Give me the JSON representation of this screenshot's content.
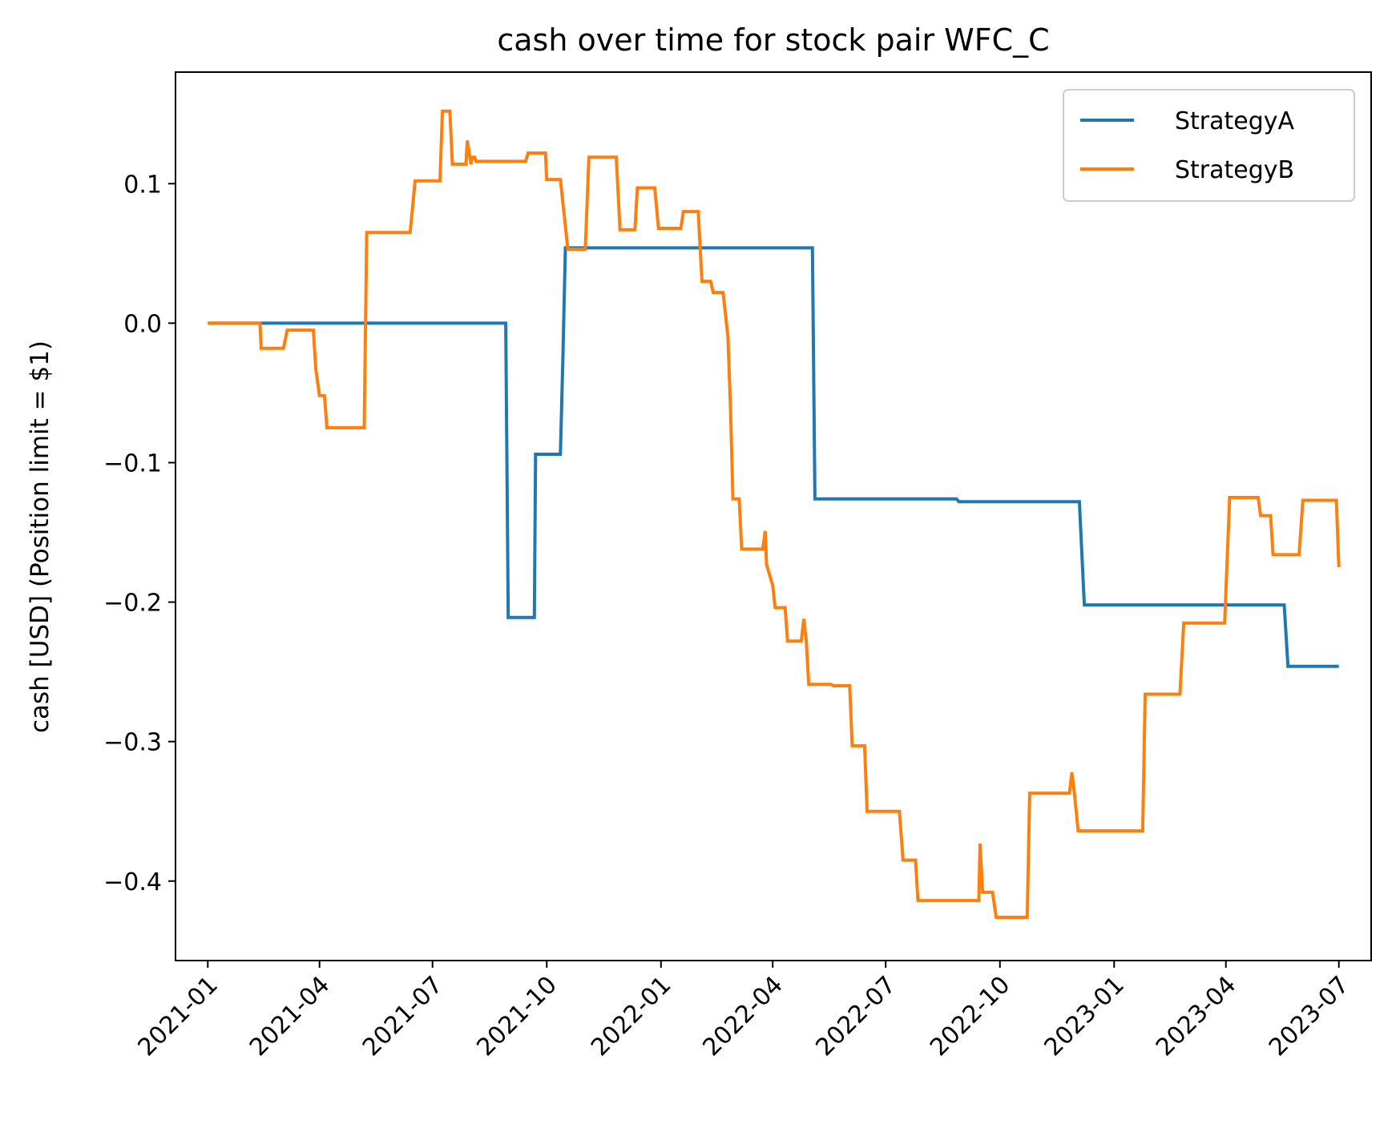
{
  "chart_data": {
    "type": "line",
    "title": "cash over time for stock pair WFC_C",
    "xlabel": "",
    "ylabel": "cash [USD] (Position limit = $1)",
    "x_ticks": [
      "2021-01",
      "2021-04",
      "2021-07",
      "2021-10",
      "2022-01",
      "2022-04",
      "2022-07",
      "2022-10",
      "2023-01",
      "2023-04",
      "2023-07"
    ],
    "y_ticks": [
      "0.1",
      "0.0",
      "−0.1",
      "−0.2",
      "−0.3",
      "−0.4"
    ],
    "y_tick_values": [
      0.1,
      0.0,
      -0.1,
      -0.2,
      -0.3,
      -0.4
    ],
    "xlim": [
      "2020-12-06",
      "2023-07-27"
    ],
    "ylim": [
      -0.457,
      0.18
    ],
    "grid": false,
    "legend_position": "top-right",
    "step_style": true,
    "series": [
      {
        "name": "StrategyA",
        "color": "#1f77b4",
        "points": [
          [
            "2021-01-01",
            0.0
          ],
          [
            "2021-08-29",
            0.0
          ],
          [
            "2021-08-31",
            -0.211
          ],
          [
            "2021-09-21",
            -0.211
          ],
          [
            "2021-09-22",
            -0.094
          ],
          [
            "2021-10-12",
            -0.094
          ],
          [
            "2021-10-14",
            -0.025
          ],
          [
            "2021-10-16",
            0.054
          ],
          [
            "2022-05-03",
            0.054
          ],
          [
            "2022-05-05",
            -0.126
          ],
          [
            "2022-08-27",
            -0.126
          ],
          [
            "2022-08-29",
            -0.128
          ],
          [
            "2022-12-04",
            -0.128
          ],
          [
            "2022-12-08",
            -0.202
          ],
          [
            "2023-05-18",
            -0.202
          ],
          [
            "2023-05-21",
            -0.246
          ],
          [
            "2023-07-01",
            -0.246
          ]
        ]
      },
      {
        "name": "StrategyB",
        "color": "#ff7f0e",
        "points": [
          [
            "2021-01-01",
            0.0
          ],
          [
            "2021-02-12",
            0.0
          ],
          [
            "2021-02-13",
            -0.018
          ],
          [
            "2021-03-03",
            -0.018
          ],
          [
            "2021-03-06",
            -0.005
          ],
          [
            "2021-03-27",
            -0.005
          ],
          [
            "2021-03-29",
            -0.033
          ],
          [
            "2021-04-01",
            -0.052
          ],
          [
            "2021-04-05",
            -0.052
          ],
          [
            "2021-04-07",
            -0.075
          ],
          [
            "2021-05-07",
            -0.075
          ],
          [
            "2021-05-09",
            0.065
          ],
          [
            "2021-06-13",
            0.065
          ],
          [
            "2021-06-17",
            0.102
          ],
          [
            "2021-07-07",
            0.102
          ],
          [
            "2021-07-09",
            0.152
          ],
          [
            "2021-07-15",
            0.152
          ],
          [
            "2021-07-17",
            0.114
          ],
          [
            "2021-07-28",
            0.114
          ],
          [
            "2021-07-29",
            0.131
          ],
          [
            "2021-08-01",
            0.114
          ],
          [
            "2021-08-02",
            0.119
          ],
          [
            "2021-08-04",
            0.119
          ],
          [
            "2021-08-05",
            0.116
          ],
          [
            "2021-09-14",
            0.116
          ],
          [
            "2021-09-16",
            0.122
          ],
          [
            "2021-09-30",
            0.122
          ],
          [
            "2021-10-01",
            0.103
          ],
          [
            "2021-10-12",
            0.103
          ],
          [
            "2021-10-18",
            0.053
          ],
          [
            "2021-11-01",
            0.053
          ],
          [
            "2021-11-04",
            0.119
          ],
          [
            "2021-11-26",
            0.119
          ],
          [
            "2021-11-29",
            0.067
          ],
          [
            "2021-12-11",
            0.067
          ],
          [
            "2021-12-13",
            0.097
          ],
          [
            "2021-12-27",
            0.097
          ],
          [
            "2021-12-30",
            0.068
          ],
          [
            "2022-01-17",
            0.068
          ],
          [
            "2022-01-19",
            0.08
          ],
          [
            "2022-01-31",
            0.08
          ],
          [
            "2022-02-03",
            0.03
          ],
          [
            "2022-02-10",
            0.03
          ],
          [
            "2022-02-12",
            0.022
          ],
          [
            "2022-02-20",
            0.022
          ],
          [
            "2022-02-24",
            -0.01
          ],
          [
            "2022-02-26",
            -0.06
          ],
          [
            "2022-02-28",
            -0.126
          ],
          [
            "2022-03-05",
            -0.126
          ],
          [
            "2022-03-07",
            -0.162
          ],
          [
            "2022-03-24",
            -0.162
          ],
          [
            "2022-03-26",
            -0.149
          ],
          [
            "2022-03-27",
            -0.173
          ],
          [
            "2022-04-01",
            -0.188
          ],
          [
            "2022-04-03",
            -0.204
          ],
          [
            "2022-04-11",
            -0.204
          ],
          [
            "2022-04-13",
            -0.228
          ],
          [
            "2022-04-24",
            -0.228
          ],
          [
            "2022-04-26",
            -0.212
          ],
          [
            "2022-04-28",
            -0.228
          ],
          [
            "2022-04-30",
            -0.259
          ],
          [
            "2022-05-18",
            -0.259
          ],
          [
            "2022-05-20",
            -0.26
          ],
          [
            "2022-06-02",
            -0.26
          ],
          [
            "2022-06-04",
            -0.303
          ],
          [
            "2022-06-14",
            -0.303
          ],
          [
            "2022-06-16",
            -0.35
          ],
          [
            "2022-07-12",
            -0.35
          ],
          [
            "2022-07-15",
            -0.385
          ],
          [
            "2022-07-25",
            -0.385
          ],
          [
            "2022-07-27",
            -0.414
          ],
          [
            "2022-09-14",
            -0.414
          ],
          [
            "2022-09-15",
            -0.373
          ],
          [
            "2022-09-17",
            -0.408
          ],
          [
            "2022-09-25",
            -0.408
          ],
          [
            "2022-09-28",
            -0.426
          ],
          [
            "2022-10-23",
            -0.426
          ],
          [
            "2022-10-25",
            -0.337
          ],
          [
            "2022-11-26",
            -0.337
          ],
          [
            "2022-11-28",
            -0.322
          ],
          [
            "2022-11-30",
            -0.337
          ],
          [
            "2022-12-03",
            -0.364
          ],
          [
            "2023-01-24",
            -0.364
          ],
          [
            "2023-01-26",
            -0.266
          ],
          [
            "2023-02-23",
            -0.266
          ],
          [
            "2023-02-26",
            -0.215
          ],
          [
            "2023-03-31",
            -0.215
          ],
          [
            "2023-04-04",
            -0.125
          ],
          [
            "2023-04-27",
            -0.125
          ],
          [
            "2023-04-29",
            -0.138
          ],
          [
            "2023-05-07",
            -0.138
          ],
          [
            "2023-05-09",
            -0.166
          ],
          [
            "2023-05-30",
            -0.166
          ],
          [
            "2023-06-02",
            -0.127
          ],
          [
            "2023-06-29",
            -0.127
          ],
          [
            "2023-07-01",
            -0.175
          ]
        ]
      }
    ]
  }
}
